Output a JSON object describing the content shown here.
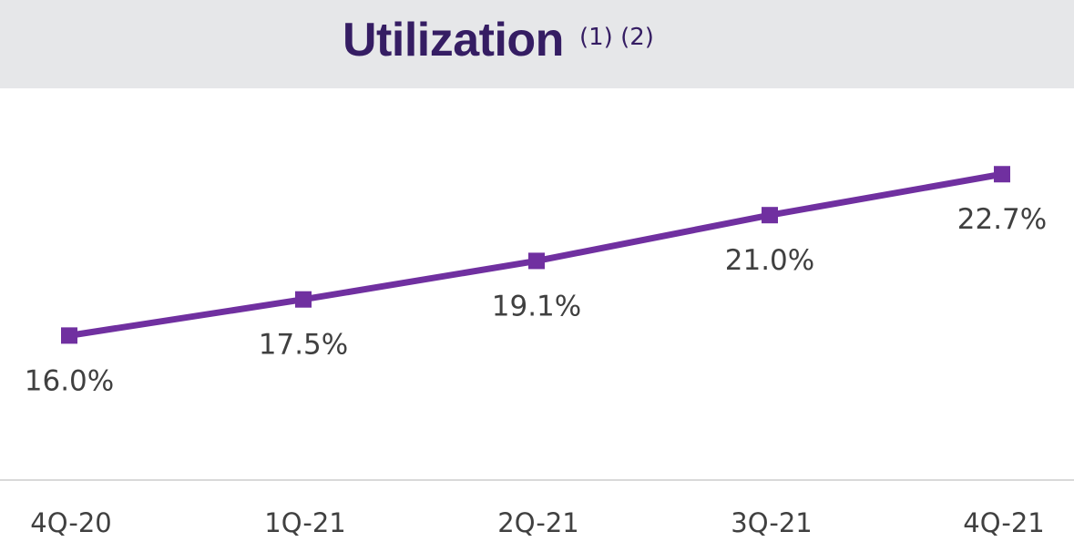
{
  "chart_data": {
    "type": "line",
    "title": "Utilization",
    "title_notes": "(1) (2)",
    "categories": [
      "4Q-20",
      "1Q-21",
      "2Q-21",
      "3Q-21",
      "4Q-21"
    ],
    "series": [
      {
        "values": [
          16.0,
          17.5,
          19.1,
          21.0,
          22.7
        ],
        "labels": [
          "16.0%",
          "17.5%",
          "19.1%",
          "21.0%",
          "22.7%"
        ]
      }
    ],
    "xlabel": "",
    "ylabel": "",
    "ylim": [
      10,
      26
    ],
    "grid": false,
    "marker": "square",
    "colors": {
      "line": "#7030a0",
      "title": "#351d63",
      "header_bg": "#e6e7e9",
      "axis": "#d9d9d9"
    }
  }
}
